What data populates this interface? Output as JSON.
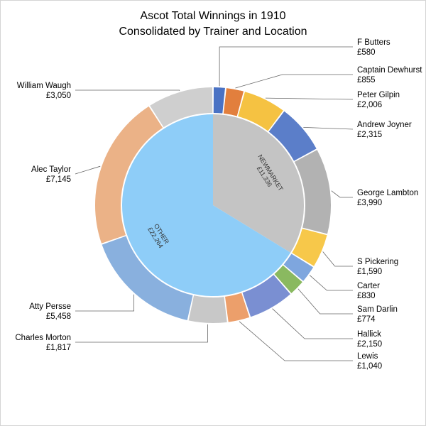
{
  "chart_data": {
    "type": "pie",
    "subtype": "doughnut-sunburst",
    "title": "Ascot Total Winnings in 1910",
    "subtitle": "Consolidated by Trainer and Location",
    "inner_ring": [
      {
        "name": "NEWMARKET",
        "value_label": "£11,336",
        "value": 11336,
        "color": "#c4c4c4"
      },
      {
        "name": "OTHER",
        "value_label": "£22,264",
        "value": 22264,
        "color": "#8ecdf8"
      }
    ],
    "outer_ring": [
      {
        "name": "F Butters",
        "value_label": "£580",
        "value": 580,
        "color": "#4a72c4",
        "group": "NEWMARKET"
      },
      {
        "name": "Captain Dewhurst",
        "value_label": "£855",
        "value": 855,
        "color": "#e27f3d",
        "group": "NEWMARKET"
      },
      {
        "name": "Peter Gilpin",
        "value_label": "£2,006",
        "value": 2006,
        "color": "#f5c242",
        "group": "NEWMARKET"
      },
      {
        "name": "Andrew Joyner",
        "value_label": "£2,315",
        "value": 2315,
        "color": "#5b7ec9",
        "group": "NEWMARKET"
      },
      {
        "name": "George Lambton",
        "value_label": "£3,990",
        "value": 3990,
        "color": "#b2b2b2",
        "group": "NEWMARKET"
      },
      {
        "name": "S Pickering",
        "value_label": "£1,590",
        "value": 1590,
        "color": "#f7c84a",
        "group": "NEWMARKET"
      },
      {
        "name": "Carter",
        "value_label": "£830",
        "value": 830,
        "color": "#7ea6de",
        "group": "OTHER"
      },
      {
        "name": "Sam Darlin",
        "value_label": "£774",
        "value": 774,
        "color": "#8ab960",
        "group": "OTHER"
      },
      {
        "name": "Hallick",
        "value_label": "£2,150",
        "value": 2150,
        "color": "#7a8fd2",
        "group": "OTHER"
      },
      {
        "name": "Lewis",
        "value_label": "£1,040",
        "value": 1040,
        "color": "#ec9f6b",
        "group": "OTHER"
      },
      {
        "name": "Charles Morton",
        "value_label": "£1,817",
        "value": 1817,
        "color": "#c8c8c8",
        "group": "OTHER"
      },
      {
        "name": "Atty Persse",
        "value_label": "£5,458",
        "value": 5458,
        "color": "#89b0de",
        "group": "OTHER"
      },
      {
        "name": "Alec Taylor",
        "value_label": "£7,145",
        "value": 7145,
        "color": "#ebb287",
        "group": "OTHER"
      },
      {
        "name": "William Waugh",
        "value_label": "£3,050",
        "value": 3050,
        "color": "#cfcfcf",
        "group": "OTHER"
      }
    ],
    "legend": "none"
  }
}
